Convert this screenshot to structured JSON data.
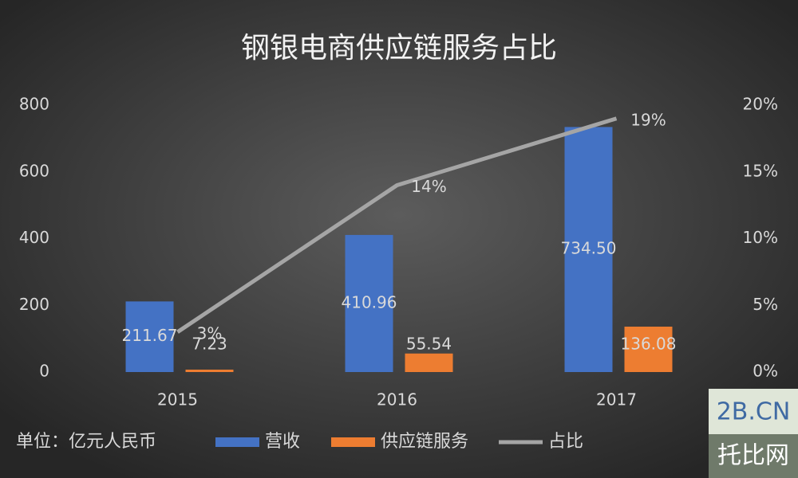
{
  "chart_data": {
    "type": "bar-line",
    "title": "钢银电商供应链服务占比",
    "categories": [
      "2015",
      "2016",
      "2017"
    ],
    "series": [
      {
        "name": "营收",
        "color": "#4472c4",
        "values": [
          211.67,
          410.96,
          734.5
        ],
        "value_labels": [
          "211.67",
          "410.96",
          "734.50"
        ]
      },
      {
        "name": "供应链服务",
        "color": "#ed7d31",
        "values": [
          7.23,
          55.54,
          136.08
        ],
        "value_labels": [
          "7.23",
          "55.54",
          "136.08"
        ]
      },
      {
        "name": "占比",
        "color": "#a5a5a5",
        "type": "line",
        "axis": "y2",
        "values": [
          3,
          14,
          19
        ],
        "value_labels": [
          "3%",
          "14%",
          "19%"
        ]
      }
    ],
    "ylim": [
      0,
      800
    ],
    "yticks": [
      0,
      200,
      400,
      600,
      800
    ],
    "y2lim": [
      0,
      20
    ],
    "y2ticks": [
      {
        "value": 0,
        "label": "0%"
      },
      {
        "value": 5,
        "label": "5%"
      },
      {
        "value": 10,
        "label": "10%"
      },
      {
        "value": 15,
        "label": "15%"
      },
      {
        "value": 20,
        "label": "20%"
      }
    ],
    "unit_note": "单位：亿元人民币",
    "grid": false
  },
  "watermark": {
    "top": "2B.CN",
    "bottom": "托比网"
  }
}
